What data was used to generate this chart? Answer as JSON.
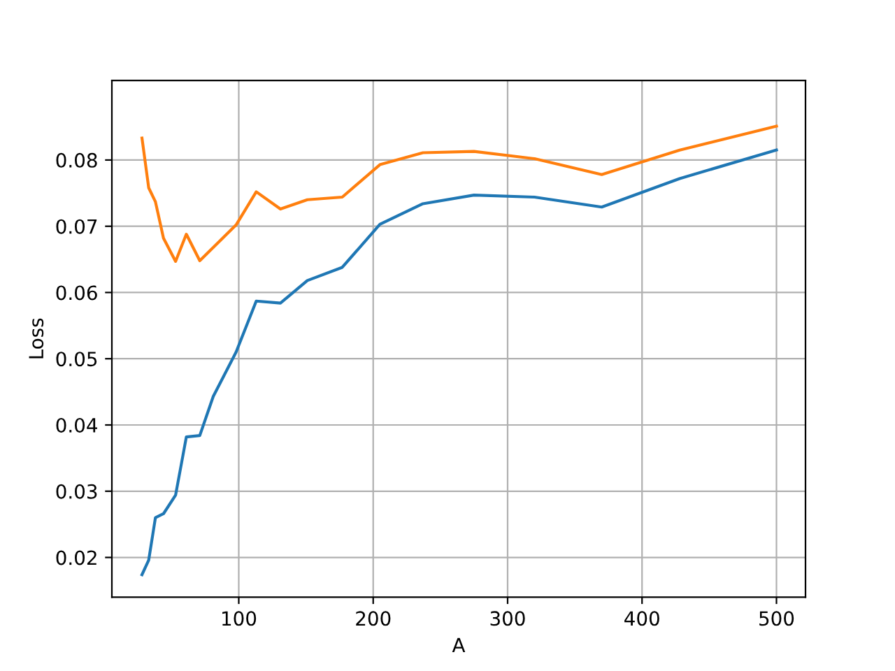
{
  "chart_data": {
    "type": "line",
    "xlabel": "A",
    "ylabel": "Loss",
    "x": [
      28,
      33,
      38,
      44,
      53,
      61,
      71,
      81,
      98,
      113,
      131,
      151,
      177,
      205,
      237,
      275,
      320,
      370,
      428,
      500
    ],
    "series": [
      {
        "color": "#1f77b4",
        "values": [
          0.0174,
          0.0196,
          0.026,
          0.0266,
          0.0294,
          0.0382,
          0.0384,
          0.0443,
          0.051,
          0.0587,
          0.0584,
          0.0618,
          0.0638,
          0.0703,
          0.0734,
          0.0747,
          0.0744,
          0.0729,
          0.0772,
          0.0815
        ]
      },
      {
        "color": "#ff7f0e",
        "values": [
          0.0833,
          0.0758,
          0.0737,
          0.0682,
          0.0647,
          0.0688,
          0.0648,
          null,
          0.0702,
          0.0752,
          0.0726,
          0.074,
          0.0744,
          0.0793,
          0.0811,
          0.0813,
          0.0802,
          0.0778,
          0.0815,
          0.0851
        ]
      }
    ],
    "xlim": [
      5.6,
      521.6
    ],
    "ylim": [
      0.014,
      0.092
    ],
    "xticks": [
      100,
      200,
      300,
      400,
      500
    ],
    "yticks": [
      {
        "value": 0.02,
        "label": "0.02"
      },
      {
        "value": 0.03,
        "label": "0.03"
      },
      {
        "value": 0.04,
        "label": "0.04"
      },
      {
        "value": 0.05,
        "label": "0.05"
      },
      {
        "value": 0.06,
        "label": "0.06"
      },
      {
        "value": 0.07,
        "label": "0.07"
      },
      {
        "value": 0.08,
        "label": "0.08"
      }
    ],
    "grid": true,
    "marker": "none",
    "line_style": "solid"
  }
}
